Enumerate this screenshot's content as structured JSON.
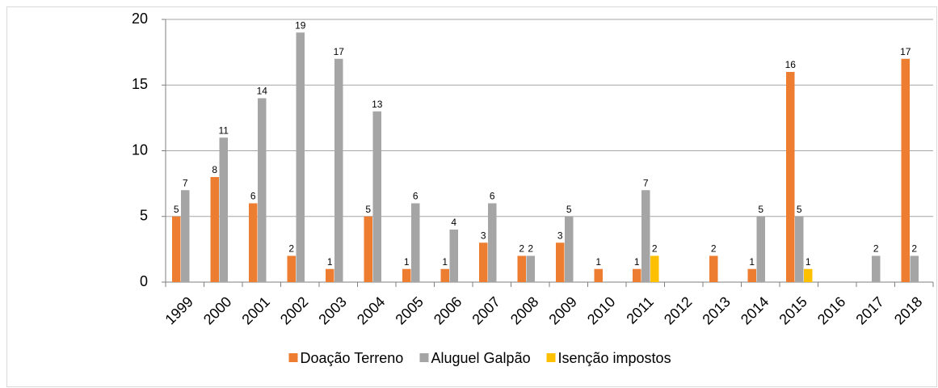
{
  "chart_data": {
    "type": "bar",
    "categories": [
      "1999",
      "2000",
      "2001",
      "2002",
      "2003",
      "2004",
      "2005",
      "2006",
      "2007",
      "2008",
      "2009",
      "2010",
      "2011",
      "2012",
      "2013",
      "2014",
      "2015",
      "2016",
      "2017",
      "2018"
    ],
    "series": [
      {
        "name": "Doação Terreno",
        "color": "#ed7d31",
        "values": [
          5,
          8,
          6,
          2,
          1,
          5,
          1,
          1,
          3,
          2,
          3,
          1,
          1,
          null,
          2,
          1,
          16,
          null,
          null,
          17
        ]
      },
      {
        "name": "Aluguel Galpão",
        "color": "#a5a5a5",
        "values": [
          7,
          11,
          14,
          19,
          17,
          13,
          6,
          4,
          6,
          2,
          5,
          null,
          7,
          null,
          null,
          5,
          5,
          null,
          2,
          2
        ]
      },
      {
        "name": "Isenção impostos",
        "color": "#ffc000",
        "values": [
          null,
          null,
          null,
          null,
          null,
          null,
          null,
          null,
          null,
          null,
          null,
          null,
          2,
          null,
          null,
          null,
          1,
          null,
          null,
          null
        ]
      }
    ],
    "ylim": [
      0,
      20
    ],
    "yticks": [
      0,
      5,
      10,
      15,
      20
    ],
    "grid": true,
    "legend": "bottom"
  }
}
